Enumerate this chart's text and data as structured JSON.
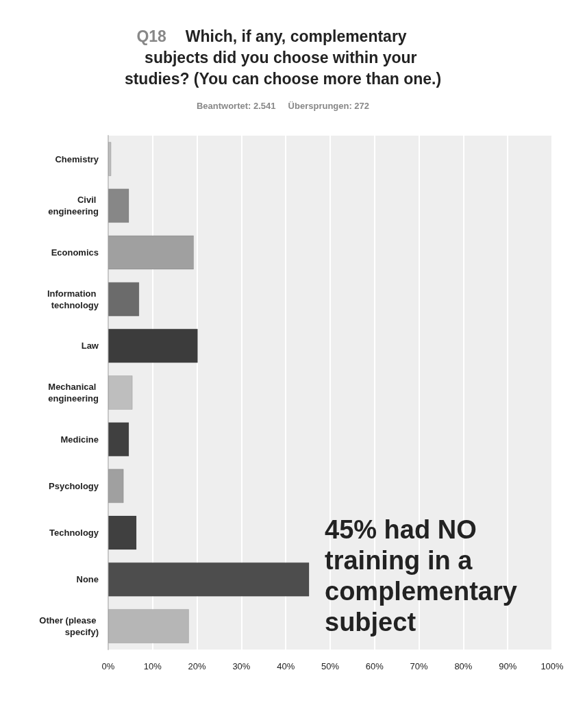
{
  "chart_data": {
    "type": "bar",
    "orientation": "horizontal",
    "title": "Q18 Which, if any, complementary subjects did you choose within your studies? (You can choose more than one.)",
    "subtitle": "Beantwortet: 2.541     Übersprungen: 272",
    "categories": [
      "Chemistry",
      "Civil engineering",
      "Economics",
      "Information technology",
      "Law",
      "Mechanical engineering",
      "Medicine",
      "Psychology",
      "Technology",
      "None",
      "Other (please specify)"
    ],
    "values": [
      0.7,
      4.7,
      19.3,
      7.0,
      20.2,
      5.5,
      4.7,
      3.5,
      6.4,
      45.3,
      18.2
    ],
    "colors": [
      "#bdbdbd",
      "#878787",
      "#a0a0a0",
      "#6b6b6b",
      "#3c3c3c",
      "#bebebe",
      "#404040",
      "#a0a0a0",
      "#404040",
      "#4d4d4d",
      "#b6b6b6"
    ],
    "xlim": [
      0,
      100
    ],
    "xticks": [
      {
        "value": 0,
        "label": "0%"
      },
      {
        "value": 10,
        "label": "10%"
      },
      {
        "value": 20,
        "label": "20%"
      },
      {
        "value": 30,
        "label": "30%"
      },
      {
        "value": 40,
        "label": "40%"
      },
      {
        "value": 50,
        "label": "50%"
      },
      {
        "value": 60,
        "label": "60%"
      },
      {
        "value": 70,
        "label": "70%"
      },
      {
        "value": 80,
        "label": "80%"
      },
      {
        "value": 90,
        "label": "90%"
      },
      {
        "value": 100,
        "label": "100%"
      }
    ],
    "grid": "x",
    "annotations": [
      "45% had NO training in a complementary subject"
    ]
  }
}
